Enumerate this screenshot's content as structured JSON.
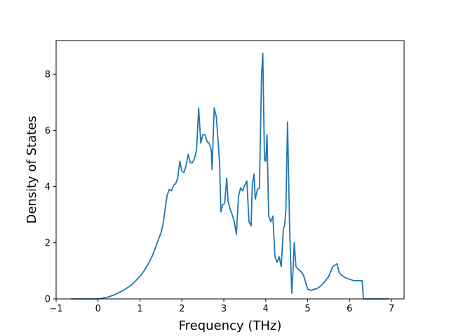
{
  "chart_data": {
    "type": "line",
    "title": "",
    "xlabel": "Frequency (THz)",
    "ylabel": "Density of States",
    "xlim": [
      -1,
      7.3
    ],
    "ylim": [
      0,
      9.2
    ],
    "xticks": [
      -1,
      0,
      1,
      2,
      3,
      4,
      5,
      6,
      7
    ],
    "yticks": [
      0,
      2,
      4,
      6,
      8
    ],
    "grid": false,
    "legend": "none",
    "series": [
      {
        "color": "#1f77b4",
        "x": [
          -0.65,
          0.0,
          0.2,
          0.4,
          0.6,
          0.8,
          1.0,
          1.1,
          1.2,
          1.3,
          1.4,
          1.5,
          1.55,
          1.6,
          1.65,
          1.7,
          1.75,
          1.8,
          1.85,
          1.9,
          1.95,
          2.0,
          2.05,
          2.1,
          2.15,
          2.2,
          2.25,
          2.3,
          2.35,
          2.4,
          2.45,
          2.5,
          2.55,
          2.6,
          2.65,
          2.7,
          2.72,
          2.77,
          2.82,
          2.87,
          2.9,
          2.93,
          2.97,
          3.02,
          3.07,
          3.1,
          3.15,
          3.2,
          3.25,
          3.3,
          3.35,
          3.4,
          3.45,
          3.5,
          3.55,
          3.6,
          3.65,
          3.68,
          3.72,
          3.75,
          3.8,
          3.85,
          3.9,
          3.93,
          3.97,
          4.0,
          4.03,
          4.07,
          4.12,
          4.17,
          4.22,
          4.27,
          4.32,
          4.37,
          4.42,
          4.45,
          4.48,
          4.52,
          4.57,
          4.62,
          4.65,
          4.68,
          4.72,
          4.75,
          4.78,
          4.82,
          4.85,
          4.9,
          5.0,
          5.1,
          5.15,
          5.2,
          5.3,
          5.4,
          5.5,
          5.6,
          5.7,
          5.75,
          5.8,
          5.85,
          5.9,
          6.0,
          6.1,
          6.2,
          6.25,
          6.3,
          6.33,
          6.4,
          6.5,
          6.93
        ],
        "values": [
          0.0,
          0.0,
          0.05,
          0.15,
          0.3,
          0.5,
          0.8,
          1.0,
          1.25,
          1.55,
          1.95,
          2.35,
          2.65,
          3.2,
          3.7,
          3.9,
          3.85,
          4.05,
          4.1,
          4.3,
          4.9,
          4.55,
          4.5,
          4.75,
          5.15,
          4.85,
          4.85,
          5.0,
          5.3,
          6.8,
          5.55,
          5.85,
          5.85,
          5.6,
          5.55,
          5.3,
          4.6,
          6.8,
          6.5,
          5.5,
          4.8,
          3.1,
          3.35,
          3.4,
          4.3,
          3.5,
          3.2,
          3.0,
          2.75,
          2.3,
          3.65,
          3.95,
          3.85,
          4.05,
          4.2,
          2.75,
          2.6,
          4.1,
          4.45,
          3.55,
          3.9,
          3.95,
          8.0,
          8.75,
          4.95,
          4.9,
          5.85,
          2.95,
          2.75,
          2.95,
          1.5,
          1.3,
          1.5,
          1.15,
          2.5,
          2.6,
          3.15,
          6.3,
          2.5,
          0.2,
          1.0,
          2.0,
          1.15,
          1.1,
          1.05,
          1.0,
          0.95,
          0.85,
          0.35,
          0.3,
          0.35,
          0.35,
          0.45,
          0.6,
          0.8,
          1.15,
          1.25,
          0.95,
          0.85,
          0.8,
          0.75,
          0.7,
          0.65,
          0.65,
          0.65,
          0.65,
          0.0,
          0.0,
          0.0,
          0.0
        ]
      }
    ]
  }
}
